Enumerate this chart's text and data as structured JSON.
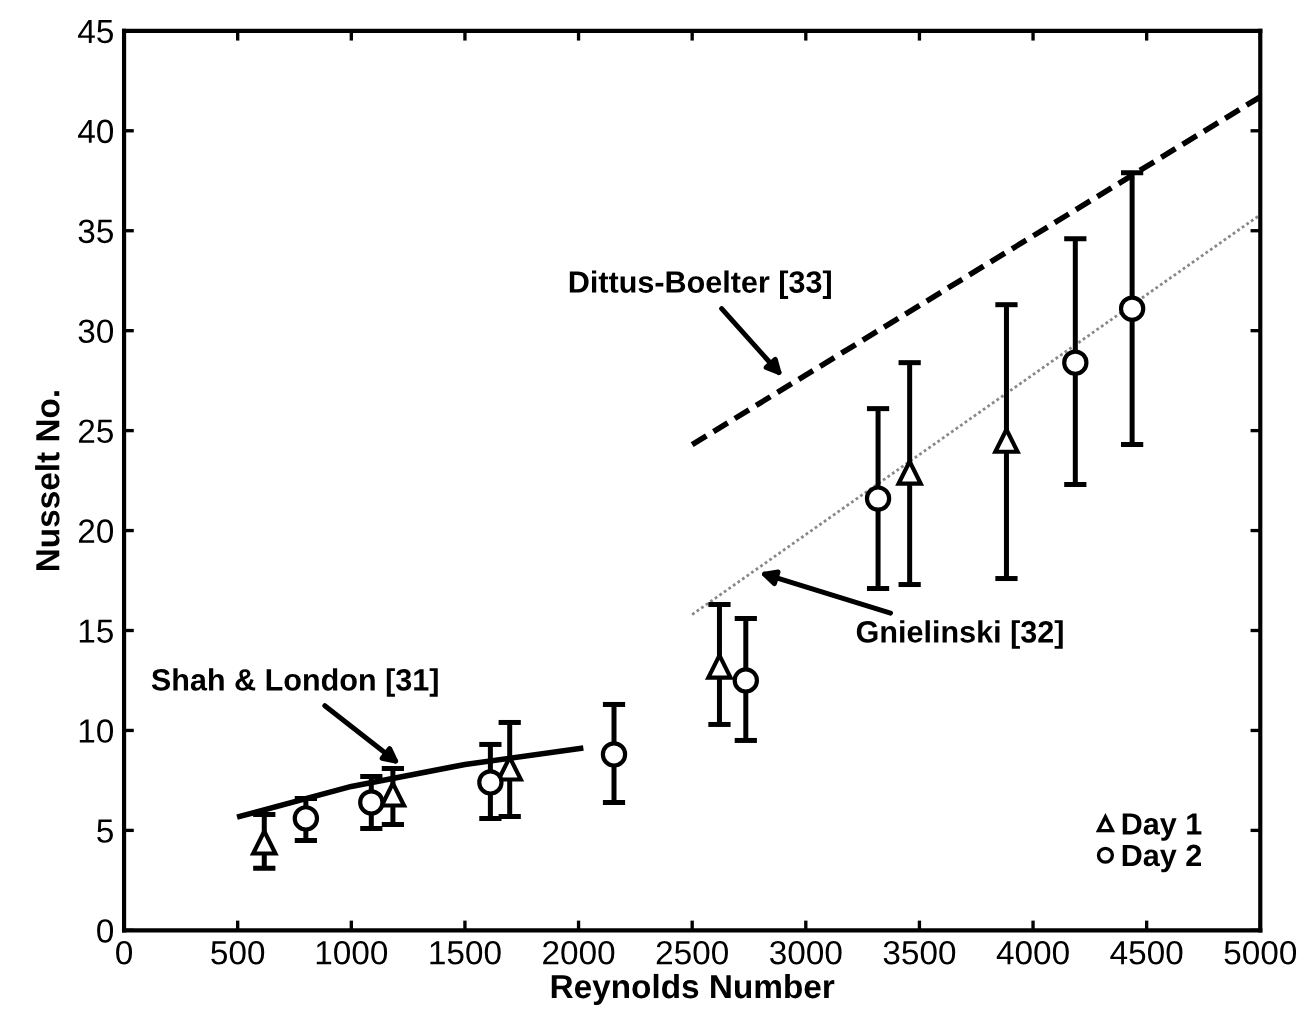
{
  "chart_data": {
    "type": "scatter",
    "xlabel": "Reynolds Number",
    "ylabel": "Nusselt No.",
    "xlim": [
      0,
      5000
    ],
    "xticks": [
      0,
      500,
      1000,
      1500,
      2000,
      2500,
      3000,
      3500,
      4000,
      4500,
      5000
    ],
    "ylim": [
      0,
      45
    ],
    "yticks": [
      0,
      5,
      10,
      15,
      20,
      25,
      30,
      35,
      40,
      45
    ],
    "grid": false,
    "legend": "bottom right",
    "series": [
      {
        "name": "Day 1",
        "marker": "triangle",
        "color": "#000000",
        "x": [
          617,
          1183,
          1697,
          2620,
          3457,
          3883
        ],
        "values": [
          4.4,
          6.8,
          8.1,
          13.2,
          22.9,
          24.5
        ],
        "errors": [
          [
            3.1,
            5.8
          ],
          [
            5.3,
            8.1
          ],
          [
            5.7,
            10.4
          ],
          [
            10.3,
            16.3
          ],
          [
            17.3,
            28.4
          ],
          [
            17.6,
            31.3
          ]
        ]
      },
      {
        "name": "Day 2",
        "marker": "circle",
        "color": "#000000",
        "x": [
          800,
          1088,
          1612,
          2156,
          2736,
          3318,
          4186,
          4436
        ],
        "values": [
          5.6,
          6.4,
          7.4,
          8.8,
          12.5,
          21.6,
          28.4,
          31.1
        ],
        "errors": [
          [
            4.5,
            6.6
          ],
          [
            5.1,
            7.7
          ],
          [
            5.6,
            9.3
          ],
          [
            6.4,
            11.3
          ],
          [
            9.5,
            15.6
          ],
          [
            17.1,
            26.1
          ],
          [
            22.3,
            34.6
          ],
          [
            24.3,
            37.9
          ]
        ]
      },
      {
        "type": "line",
        "line_style": "solid",
        "color": "#000000",
        "x": [
          509,
          1000,
          1500,
          2009
        ],
        "values": [
          5.7,
          7.2,
          8.3,
          9.1
        ]
      },
      {
        "type": "line",
        "line_style": "dotted",
        "color": "#888888",
        "x": [
          2500,
          5000
        ],
        "values": [
          15.8,
          35.8
        ]
      },
      {
        "type": "line",
        "line_style": "dashed",
        "color": "#000000",
        "x": [
          2500,
          5000
        ],
        "values": [
          24.3,
          41.7
        ]
      }
    ],
    "annotations": [
      {
        "text": "Shah & London [31]",
        "x": 1214,
        "y": 8.3
      },
      {
        "text": "Gnielinski [32]",
        "x": 2795,
        "y": 17.9
      },
      {
        "text": "Dittus-Boelter [33]",
        "x": 2898,
        "y": 27.7
      }
    ]
  }
}
